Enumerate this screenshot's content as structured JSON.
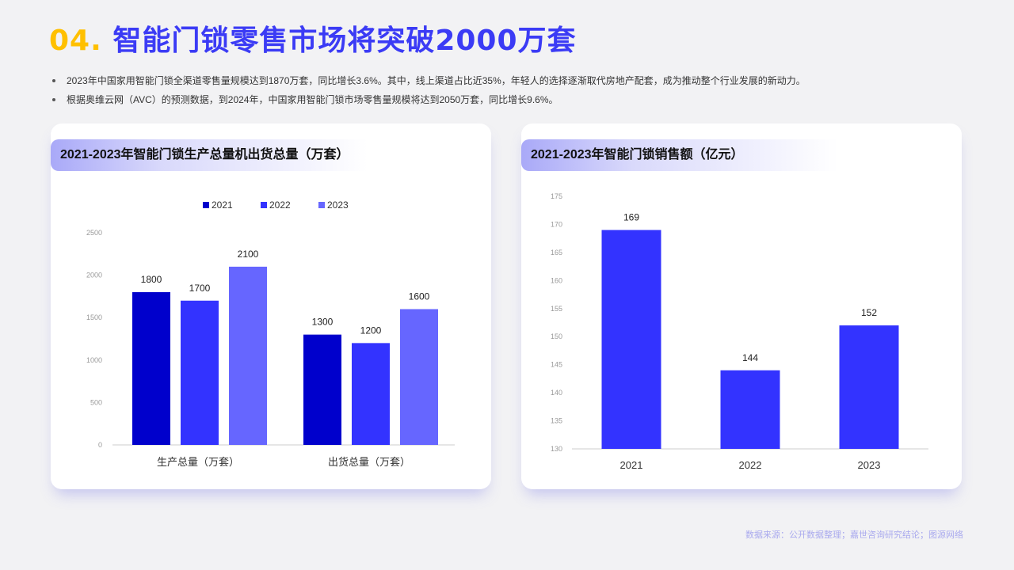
{
  "header": {
    "number": "04.",
    "title": "智能门锁零售市场将突破2000万套"
  },
  "bullets": [
    "2023年中国家用智能门锁全渠道零售量规模达到1870万套，同比增长3.6%。其中，线上渠道占比近35%，年轻人的选择逐渐取代房地产配套，成为推动整个行业发展的新动力。",
    "根据奥维云网（AVC）的预测数据，到2024年，中国家用智能门锁市场零售量规模将达到2050万套，同比增长9.6%。"
  ],
  "source": "数据来源：公开数据整理；嘉世咨询研究结论；图源网络",
  "chart_data": [
    {
      "type": "bar",
      "title": "2021-2023年智能门锁生产总量机出货总量（万套）",
      "categories": [
        "生产总量（万套）",
        "出货总量（万套）"
      ],
      "series": [
        {
          "name": "2021",
          "values": [
            1800,
            1300
          ],
          "color": "#0000cc"
        },
        {
          "name": "2022",
          "values": [
            1700,
            1200
          ],
          "color": "#3333ff"
        },
        {
          "name": "2023",
          "values": [
            2100,
            1600
          ],
          "color": "#6666ff"
        }
      ],
      "ylim": [
        0,
        2500
      ],
      "yticks": [
        0,
        500,
        1000,
        1500,
        2000,
        2500
      ],
      "legend": "top-center",
      "grid": false
    },
    {
      "type": "bar",
      "title": "2021-2023年智能门锁销售额（亿元）",
      "categories": [
        "2021",
        "2022",
        "2023"
      ],
      "values": [
        169,
        144,
        152
      ],
      "color": "#3333ff",
      "ylim": [
        130,
        175
      ],
      "yticks": [
        130,
        135,
        140,
        145,
        150,
        155,
        160,
        165,
        170,
        175
      ],
      "grid": false
    }
  ]
}
